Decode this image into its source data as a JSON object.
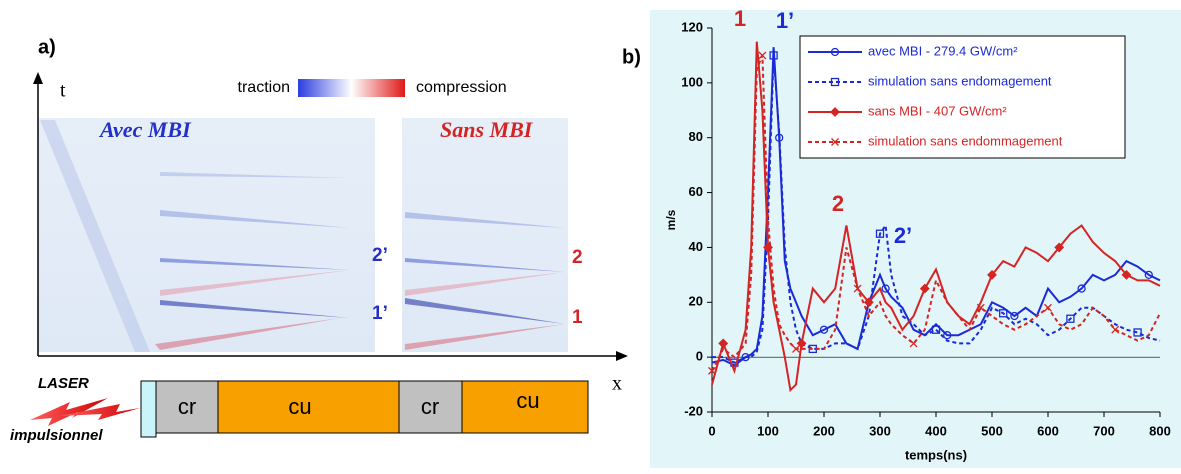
{
  "panel_a": {
    "label": "a)",
    "t_axis": "t",
    "x_axis": "x",
    "scale_low": "traction",
    "scale_high": "compression",
    "left_title": "Avec MBI",
    "right_title": "Sans MBI",
    "left_marks": [
      "2’",
      "1’"
    ],
    "right_marks": [
      "2",
      "1"
    ],
    "laser": "LASER",
    "laser_sub": "impulsionnel",
    "left_blocks": [
      "cr",
      "cu"
    ],
    "right_blocks": [
      "cr",
      "cu"
    ]
  },
  "chart_data": {
    "type": "line",
    "label": "b)",
    "ylabel": "m/s",
    "xlabel": "temps(ns)",
    "legend": "upper right",
    "annotations": [
      "1",
      "1’",
      "2",
      "2’"
    ],
    "x": [
      0,
      20,
      40,
      60,
      70,
      80,
      90,
      100,
      110,
      120,
      130,
      140,
      150,
      160,
      180,
      200,
      220,
      240,
      260,
      280,
      300,
      310,
      320,
      340,
      360,
      380,
      400,
      420,
      440,
      460,
      480,
      500,
      520,
      540,
      560,
      580,
      600,
      620,
      640,
      660,
      680,
      700,
      720,
      740,
      760,
      780,
      800
    ],
    "xlim": [
      0,
      800
    ],
    "xticks": [
      0,
      100,
      200,
      300,
      400,
      500,
      600,
      700,
      800
    ],
    "ylim": [
      -20,
      120
    ],
    "yticks": [
      -20,
      0,
      20,
      40,
      60,
      80,
      100,
      120
    ],
    "series": [
      {
        "name": "avec MBI - 279.4 GW/cm²",
        "color": "#1a2ad6",
        "style": "solid",
        "marker": "circle",
        "values": [
          -2,
          -1,
          -3,
          0,
          1,
          3,
          15,
          60,
          113,
          80,
          35,
          25,
          20,
          15,
          8,
          10,
          12,
          5,
          3,
          20,
          30,
          25,
          22,
          18,
          10,
          8,
          12,
          8,
          8,
          10,
          12,
          20,
          18,
          15,
          18,
          15,
          25,
          20,
          22,
          25,
          30,
          28,
          30,
          35,
          33,
          30,
          28
        ]
      },
      {
        "name": "simulation sans endomagement",
        "color": "#1a2ad6",
        "style": "dashed",
        "marker": "square",
        "values": [
          0,
          0,
          -2,
          0,
          0,
          2,
          10,
          50,
          110,
          82,
          40,
          20,
          10,
          5,
          3,
          3,
          5,
          5,
          3,
          15,
          45,
          48,
          30,
          15,
          12,
          8,
          10,
          6,
          5,
          5,
          10,
          18,
          16,
          12,
          14,
          12,
          8,
          10,
          14,
          18,
          18,
          15,
          12,
          10,
          9,
          7,
          6
        ]
      },
      {
        "name": "sans MBI - 407 GW/cm²",
        "color": "#d42424",
        "style": "solid",
        "marker": "diamond",
        "values": [
          -10,
          5,
          -5,
          10,
          40,
          115,
          90,
          40,
          20,
          10,
          0,
          -12,
          -10,
          5,
          25,
          20,
          25,
          48,
          25,
          20,
          25,
          20,
          18,
          10,
          15,
          25,
          32,
          20,
          15,
          12,
          20,
          30,
          35,
          33,
          40,
          38,
          35,
          40,
          45,
          48,
          42,
          38,
          35,
          30,
          28,
          28,
          26
        ]
      },
      {
        "name": "simulation sans endommagement",
        "color": "#d42424",
        "style": "dashed",
        "marker": "x",
        "values": [
          -5,
          3,
          0,
          5,
          30,
          105,
          110,
          50,
          25,
          12,
          8,
          5,
          3,
          3,
          3,
          3,
          10,
          40,
          25,
          15,
          20,
          15,
          12,
          8,
          5,
          10,
          28,
          20,
          15,
          10,
          18,
          15,
          12,
          10,
          12,
          15,
          18,
          12,
          10,
          12,
          18,
          15,
          10,
          8,
          6,
          8,
          16
        ]
      }
    ]
  }
}
